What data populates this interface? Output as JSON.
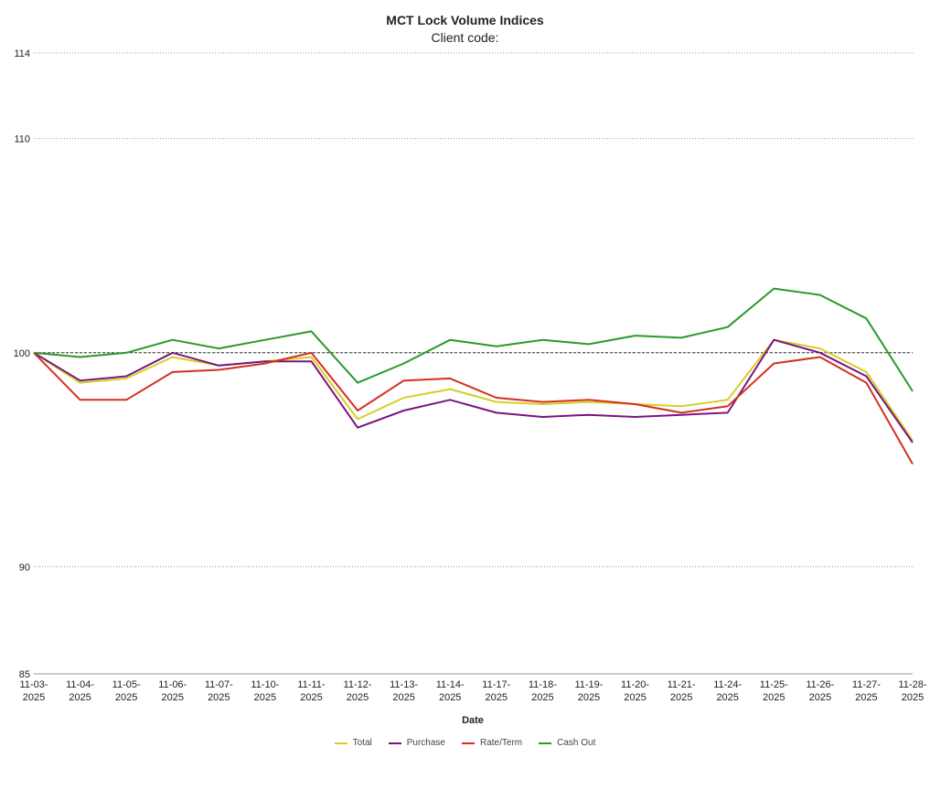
{
  "chart_data": {
    "type": "line",
    "title": "MCT Lock Volume Indices",
    "subtitle": "Client code:",
    "xlabel": "Date",
    "ylabel": "",
    "ylim": [
      85,
      114
    ],
    "yticks": [
      85,
      90,
      100,
      110,
      114
    ],
    "reference_line": 100,
    "grid": "dotted horizontal at y ticks",
    "legend_position": "bottom-center",
    "categories": [
      [
        "11-03-",
        "2025"
      ],
      [
        "11-04-",
        "2025"
      ],
      [
        "11-05-",
        "2025"
      ],
      [
        "11-06-",
        "2025"
      ],
      [
        "11-07-",
        "2025"
      ],
      [
        "11-10-",
        "2025"
      ],
      [
        "11-11-",
        "2025"
      ],
      [
        "11-12-",
        "2025"
      ],
      [
        "11-13-",
        "2025"
      ],
      [
        "11-14-",
        "2025"
      ],
      [
        "11-17-",
        "2025"
      ],
      [
        "11-18-",
        "2025"
      ],
      [
        "11-19-",
        "2025"
      ],
      [
        "11-20-",
        "2025"
      ],
      [
        "11-21-",
        "2025"
      ],
      [
        "11-24-",
        "2025"
      ],
      [
        "11-25-",
        "2025"
      ],
      [
        "11-26-",
        "2025"
      ],
      [
        "11-27-",
        "2025"
      ],
      [
        "11-28-",
        "2025"
      ]
    ],
    "series": [
      {
        "name": "Total",
        "color": "#d4cf27",
        "values": [
          100,
          98.6,
          98.8,
          99.8,
          99.4,
          99.6,
          99.8,
          96.9,
          97.9,
          98.3,
          97.7,
          97.6,
          97.7,
          97.6,
          97.5,
          97.8,
          100.6,
          100.2,
          99.1,
          95.9
        ]
      },
      {
        "name": "Purchase",
        "color": "#7b1580",
        "values": [
          100,
          98.7,
          98.9,
          100,
          99.4,
          99.6,
          99.6,
          96.5,
          97.3,
          97.8,
          97.2,
          97.0,
          97.1,
          97.0,
          97.1,
          97.2,
          100.6,
          100,
          98.9,
          95.8
        ]
      },
      {
        "name": "Rate/Term",
        "color": "#d3311f",
        "values": [
          100,
          97.8,
          97.8,
          99.1,
          99.2,
          99.5,
          100,
          97.3,
          98.7,
          98.8,
          97.9,
          97.7,
          97.8,
          97.6,
          97.2,
          97.5,
          99.5,
          99.8,
          98.6,
          94.8
        ]
      },
      {
        "name": "Cash Out",
        "color": "#2a9a2a",
        "values": [
          100,
          99.8,
          100,
          100.6,
          100.2,
          100.6,
          101,
          98.6,
          99.5,
          100.6,
          100.3,
          100.6,
          100.4,
          100.8,
          100.7,
          101.2,
          103,
          102.7,
          101.6,
          98.2
        ]
      }
    ]
  }
}
